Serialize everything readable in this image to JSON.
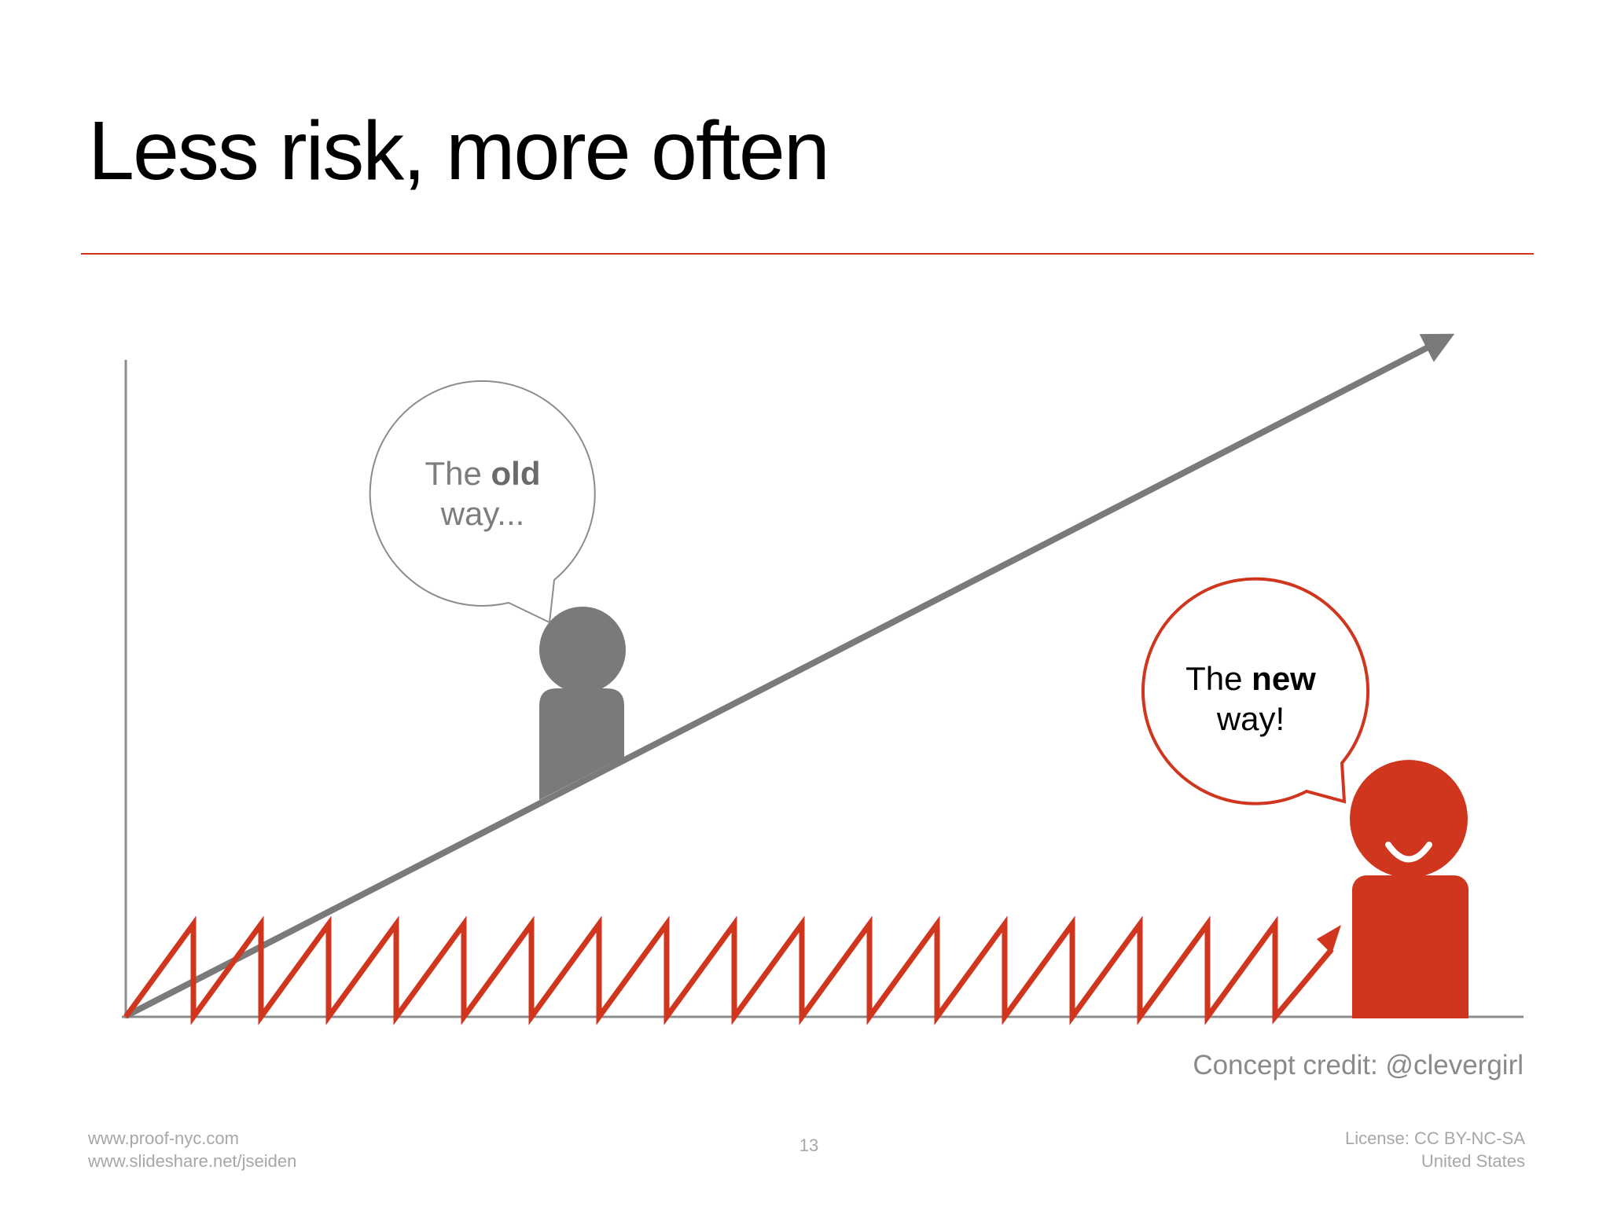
{
  "slide": {
    "title": "Less risk, more often"
  },
  "diagram": {
    "old_bubble": {
      "text_before": "The ",
      "text_bold": "old",
      "line2": "way..."
    },
    "new_bubble": {
      "text_before": "The ",
      "text_bold": "new",
      "line2": "way!"
    }
  },
  "credit": "Concept credit: @clevergirl",
  "footer": {
    "left_line1": "www.proof-nyc.com",
    "left_line2": "www.slideshare.net/jseiden",
    "page_number": "13",
    "right_line1": "License: CC BY-NC-SA",
    "right_line2": "United States"
  },
  "colors": {
    "accent_red": "#d0351e",
    "gray": "#7a7a7a",
    "axis_gray": "#8c8c8c",
    "text_gray": "#8a8a8a",
    "footer_gray": "#a7a7a7"
  },
  "icons": {
    "old_person": "gray-person-icon",
    "new_person": "smiling-red-person-icon"
  }
}
